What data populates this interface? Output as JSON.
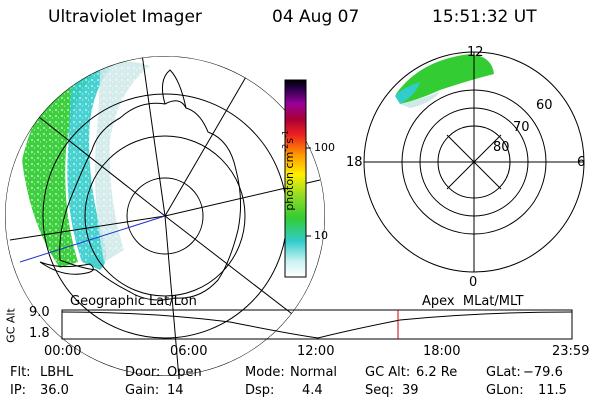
{
  "header": {
    "instrument": "Ultraviolet Imager",
    "date": "04 Aug 07",
    "time": "15:51:32 UT"
  },
  "colorbar": {
    "unit_label": "photon cm",
    "unit_exp1": "-2",
    "unit_s": "s",
    "unit_exp2": "-1",
    "ticks": [
      "100",
      "10"
    ]
  },
  "geo_panel": {
    "title": "Geographic Lat/Lon"
  },
  "apex_panel": {
    "title": "Apex  MLat/MLT",
    "mlt_labels": {
      "top": "12",
      "left": "18",
      "right": "6",
      "bottom": "0"
    },
    "lat_labels": [
      "60",
      "70",
      "80"
    ]
  },
  "altitude_plot": {
    "ylabel": "GC Alt",
    "yticks": [
      "9.0",
      "1.8"
    ],
    "xticks": [
      "00:00",
      "06:00",
      "12:00",
      "18:00",
      "23:59"
    ],
    "current_time_marker": "15:51"
  },
  "status": {
    "filter_label": "Flt:",
    "filter_value": "LBHL",
    "ip_label": "IP:",
    "ip_value": "36.0",
    "door_label": "Door:",
    "door_value": "Open",
    "gain_label": "Gain:",
    "gain_value": "14",
    "mode_label": "Mode:",
    "mode_value": "Normal",
    "dsp_label": "Dsp:",
    "dsp_value": "4.4",
    "gcalt_label": "GC Alt:",
    "gcalt_value": "6.2 Re",
    "seq_label": "Seq:",
    "seq_value": "39",
    "glat_label": "GLat:",
    "glat_value": "−79.6",
    "glon_label": "GLon:",
    "glon_value": "11.5"
  },
  "colors": {
    "aurora_green": "#33cc33",
    "aurora_cyan": "#33cccc",
    "marker_red": "#cc0000",
    "meridian_blue": "#2233cc"
  }
}
